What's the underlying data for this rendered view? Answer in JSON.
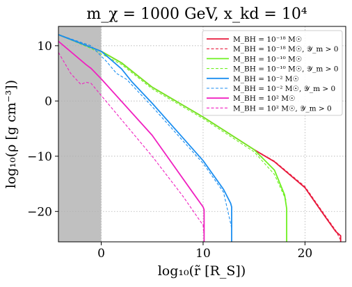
{
  "chart_data": {
    "type": "line",
    "title": "m_χ = 1000 GeV,  x_kd = 10⁴",
    "xlabel": "log₁₀(r̃ [R_S])",
    "ylabel": "log₁₀(ρ [g cm⁻³])",
    "xlim": [
      -4.2,
      24.0
    ],
    "ylim": [
      -25.5,
      13.5
    ],
    "xticks": [
      0,
      10,
      20
    ],
    "xtick_labels": [
      "0",
      "10",
      "20"
    ],
    "yticks": [
      10,
      0,
      -10,
      -20
    ],
    "ytick_labels": [
      "10",
      "0",
      "−10",
      "−20"
    ],
    "grid": true,
    "grid_style": "dotted",
    "shaded_region": {
      "x_from": -4.2,
      "x_to": 0,
      "color": "#c0c0c0"
    },
    "legend_position": "top-right",
    "series": [
      {
        "name": "M_BH = 10⁻¹⁸ M☉",
        "color": "#e8193c",
        "style": "solid",
        "x": [
          -4.2,
          0,
          2,
          5,
          10,
          15,
          17,
          20,
          22,
          23,
          23.5,
          23.5
        ],
        "y": [
          12.0,
          9.0,
          6.9,
          2.5,
          -2.9,
          -8.8,
          -11.0,
          -15.7,
          -21.0,
          -23.6,
          -24.4,
          -25.5
        ]
      },
      {
        "name": "M_BH = 10⁻¹⁸ M☉, 𝒴_m > 0",
        "color": "#e8193c",
        "style": "dashed",
        "x": [
          -4.2,
          0,
          2,
          5,
          10,
          15,
          17,
          20,
          22,
          23,
          23.5
        ],
        "y": [
          12.0,
          9.0,
          6.9,
          2.5,
          -2.9,
          -8.8,
          -10.9,
          -15.5,
          -20.8,
          -23.4,
          -25.2
        ]
      },
      {
        "name": "M_BH = 10⁻¹⁰ M☉",
        "color": "#6ef020",
        "style": "solid",
        "x": [
          -4.2,
          0,
          2,
          5,
          10,
          15,
          17,
          18,
          18.2,
          18.2
        ],
        "y": [
          12.0,
          9.0,
          6.9,
          2.5,
          -2.9,
          -8.8,
          -12.5,
          -17.0,
          -19.5,
          -25.5
        ]
      },
      {
        "name": "M_BH = 10⁻¹⁰ M☉, 𝒴_m > 0",
        "color": "#6ef020",
        "style": "dashed",
        "x": [
          -4.2,
          -1,
          2,
          5,
          10,
          15,
          17,
          18.2
        ],
        "y": [
          12.0,
          9.5,
          6.6,
          2.2,
          -3.2,
          -9.2,
          -13.3,
          -18.2
        ]
      },
      {
        "name": "M_BH = 10⁻² M☉",
        "color": "#1b8ef0",
        "style": "solid",
        "x": [
          -4.2,
          0,
          2,
          3,
          5,
          10,
          12,
          12.7,
          12.8,
          12.8
        ],
        "y": [
          12.0,
          9.0,
          5.8,
          3.5,
          -0.4,
          -10.8,
          -16.0,
          -18.5,
          -19.2,
          -25.5
        ]
      },
      {
        "name": "M_BH = 10⁻² M☉, 𝒴_m > 0",
        "color": "#1b8ef0",
        "style": "dashed",
        "x": [
          -4.2,
          -1,
          0.5,
          1.5,
          2.5,
          5,
          10,
          12,
          12.8
        ],
        "y": [
          12.0,
          10.0,
          7.2,
          5.0,
          3.9,
          -1.0,
          -11.3,
          -16.5,
          -23.0
        ]
      },
      {
        "name": "M_BH = 10² M☉",
        "color": "#f020c0",
        "style": "solid",
        "x": [
          -4.2,
          -1.5,
          -1,
          0,
          5,
          9,
          10,
          10.1,
          10.1
        ],
        "y": [
          10.8,
          6.6,
          5.9,
          4.0,
          -6.2,
          -16.6,
          -19.2,
          -19.7,
          -25.5
        ]
      },
      {
        "name": "M_BH = 10² M☉, 𝒴_m > 0",
        "color": "#f020c0",
        "style": "dashed",
        "x": [
          -4.2,
          -3,
          -2,
          -1.5,
          -1,
          0,
          5,
          8,
          10,
          10.1
        ],
        "y": [
          8.8,
          5.0,
          3.0,
          3.4,
          3.2,
          1.0,
          -10.0,
          -17.2,
          -22.5,
          -24.5
        ]
      }
    ]
  }
}
